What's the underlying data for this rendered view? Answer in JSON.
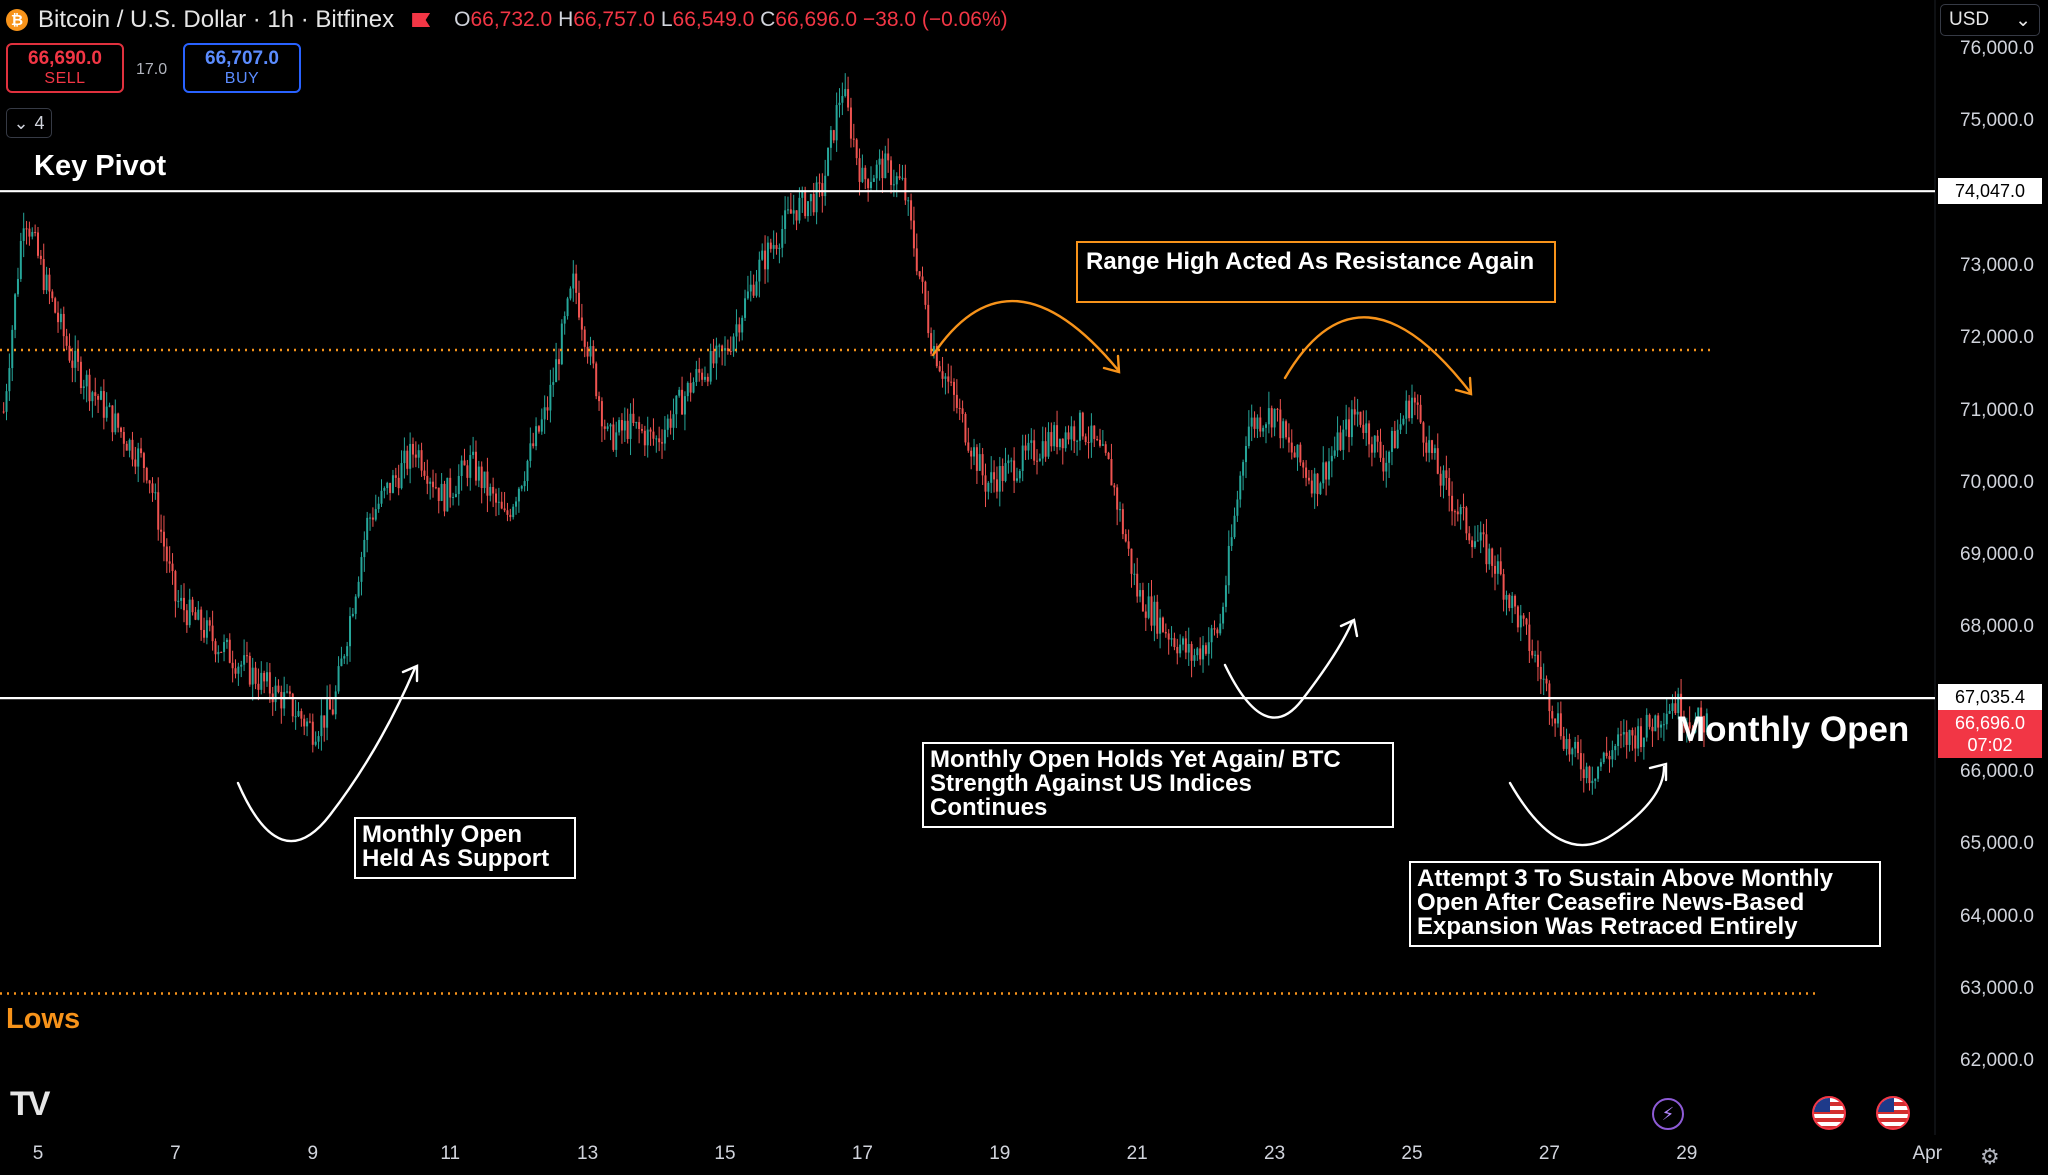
{
  "header": {
    "title": "Bitcoin / U.S. Dollar · 1h · Bitfinex",
    "logo_glyph": "₿",
    "ohlc": {
      "o_label": "O",
      "o": "66,732.0",
      "h_label": "H",
      "h": "66,757.0",
      "l_label": "L",
      "l": "66,549.0",
      "c_label": "C",
      "c": "66,696.0",
      "change": "−38.0 (−0.06%)"
    }
  },
  "trade": {
    "sell_price": "66,690.0",
    "sell_label": "SELL",
    "spread": "17.0",
    "buy_price": "66,707.0",
    "buy_label": "BUY"
  },
  "collapse_button": {
    "count": "4"
  },
  "currency": {
    "value": "USD"
  },
  "annotations": {
    "key_pivot": "Key Pivot",
    "lows": "Lows",
    "range_high": "Range High Acted As Resistance Again",
    "monthly_open_support": "Monthly Open\nHeld As Support",
    "monthly_open_holds": "Monthly Open Holds Yet Again/ BTC\nStrength Against US Indices\nContinues",
    "attempt_3": "Attempt 3 To Sustain Above Monthly\nOpen After Ceasefire News-Based\nExpansion Was Retraced Entirely",
    "monthly_open": "Monthly Open"
  },
  "price_axis": {
    "labels": [
      "76,000.0",
      "75,000.0",
      "73,000.0",
      "72,000.0",
      "71,000.0",
      "70,000.0",
      "69,000.0",
      "68,000.0",
      "66,000.0",
      "65,000.0",
      "64,000.0",
      "63,000.0",
      "62,000.0"
    ],
    "key_pivot_tag": "74,047.0",
    "monthly_open_tag": "67,035.4",
    "last_price_tag": "66,696.0",
    "countdown": "07:02"
  },
  "time_axis": {
    "labels": [
      "5",
      "7",
      "9",
      "11",
      "13",
      "15",
      "17",
      "19",
      "21",
      "23",
      "25",
      "27",
      "29",
      "Apr"
    ]
  },
  "colors": {
    "bull": "#26a69a",
    "bear": "#ef5350",
    "orange": "#f7931a",
    "white": "#ffffff",
    "red_tag": "#f23645"
  },
  "chart_data": {
    "type": "candlestick",
    "title": "Bitcoin / U.S. Dollar · 1h · Bitfinex",
    "ylim": [
      61500,
      76100
    ],
    "x_ticks": [
      "5",
      "7",
      "9",
      "11",
      "13",
      "15",
      "17",
      "19",
      "21",
      "23",
      "25",
      "27",
      "29",
      "Apr"
    ],
    "levels": [
      {
        "name": "Key Pivot",
        "value": 74047.0,
        "style": "solid",
        "color": "#ffffff"
      },
      {
        "name": "Monthly Open",
        "value": 67035.4,
        "style": "solid",
        "color": "#ffffff"
      },
      {
        "name": "Range High",
        "value": 71850,
        "style": "dotted",
        "color": "#f7931a"
      },
      {
        "name": "Lows",
        "value": 62950,
        "style": "dotted",
        "color": "#f7931a"
      }
    ],
    "price_path": {
      "day": [
        4.5,
        4.8,
        5.1,
        5.5,
        6.0,
        6.6,
        7.0,
        7.6,
        8.2,
        8.6,
        9.0,
        9.3,
        9.8,
        10.5,
        10.9,
        11.3,
        11.8,
        12.4,
        12.8,
        13.3,
        13.6,
        14.0,
        14.6,
        15.0,
        15.5,
        16.0,
        16.4,
        16.7,
        17.0,
        17.3,
        17.6,
        18.0,
        18.4,
        18.8,
        19.3,
        19.7,
        20.2,
        20.6,
        21.0,
        21.4,
        21.8,
        22.2,
        22.6,
        23.0,
        23.2,
        23.6,
        24.2,
        24.6,
        25.0,
        25.4,
        25.8,
        26.2,
        26.7,
        27.3,
        27.6,
        28.0,
        28.4,
        28.8,
        29.1,
        29.3
      ],
      "price": [
        71000,
        73800,
        72800,
        71700,
        71000,
        70200,
        68400,
        67800,
        67300,
        67000,
        66600,
        66900,
        69500,
        70500,
        69800,
        70300,
        69500,
        71000,
        72800,
        70600,
        70800,
        70600,
        71500,
        71800,
        73000,
        73800,
        74000,
        75500,
        74200,
        74400,
        74100,
        72000,
        71000,
        70000,
        70300,
        70600,
        70800,
        70200,
        68500,
        68000,
        67600,
        68000,
        70800,
        71000,
        70500,
        70000,
        71000,
        70300,
        71200,
        70100,
        69400,
        68900,
        67800,
        66300,
        66000,
        66400,
        66600,
        67000,
        66700,
        66700
      ]
    }
  }
}
